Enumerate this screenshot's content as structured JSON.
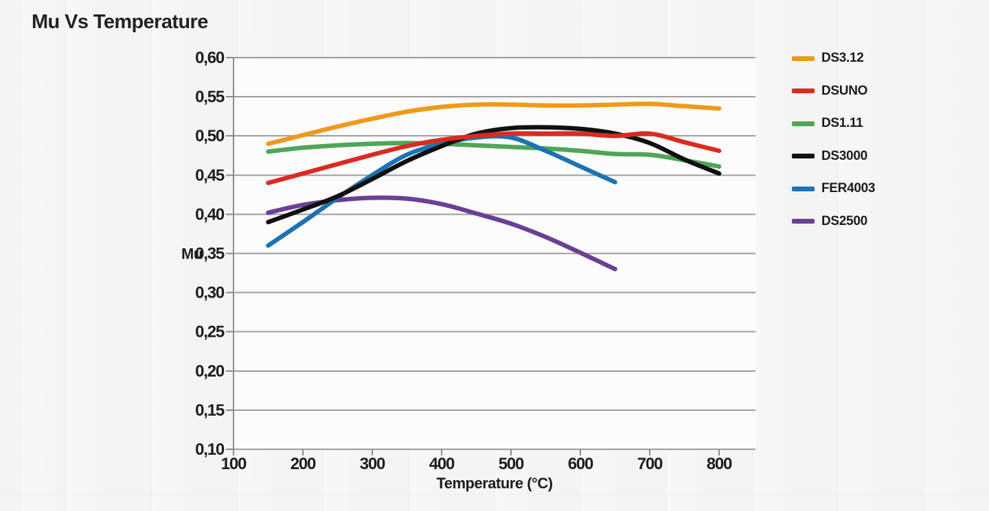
{
  "title": "Mu Vs Temperature",
  "chart_data": {
    "type": "line",
    "title": "Mu Vs Temperature",
    "xlabel": "Temperature (°C)",
    "ylabel": "Mu",
    "xlim": [
      100,
      852
    ],
    "ylim": [
      0.1,
      0.6
    ],
    "x_ticks": [
      100,
      200,
      300,
      400,
      500,
      600,
      700,
      800
    ],
    "y_ticks": [
      0.6,
      0.55,
      0.5,
      0.45,
      0.4,
      0.35,
      0.3,
      0.25,
      0.2,
      0.15,
      0.1
    ],
    "y_tick_labels": [
      "0,60",
      "0,55",
      "0,50",
      "0,45",
      "0,40",
      "0,35",
      "0,30",
      "0,25",
      "0,20",
      "0,15",
      "0,10"
    ],
    "decimal_separator": ",",
    "grid": "horizontal",
    "legend_position": "right",
    "series": [
      {
        "name": "DS3.12",
        "color": "#F0991A",
        "x": [
          150,
          200,
          250,
          300,
          350,
          400,
          450,
          500,
          550,
          600,
          650,
          700,
          750,
          800
        ],
        "y": [
          0.49,
          0.501,
          0.512,
          0.522,
          0.531,
          0.537,
          0.54,
          0.54,
          0.539,
          0.539,
          0.54,
          0.541,
          0.538,
          0.535
        ]
      },
      {
        "name": "DSUNO",
        "color": "#DA2B20",
        "x": [
          150,
          200,
          250,
          300,
          350,
          400,
          450,
          500,
          550,
          600,
          650,
          700,
          750,
          800
        ],
        "y": [
          0.44,
          0.452,
          0.464,
          0.476,
          0.487,
          0.495,
          0.5,
          0.503,
          0.503,
          0.503,
          0.5,
          0.503,
          0.492,
          0.481
        ]
      },
      {
        "name": "DS1.11",
        "color": "#4EA656",
        "x": [
          150,
          200,
          250,
          300,
          350,
          400,
          450,
          500,
          550,
          600,
          650,
          700,
          750,
          800
        ],
        "y": [
          0.48,
          0.485,
          0.488,
          0.49,
          0.491,
          0.49,
          0.488,
          0.486,
          0.484,
          0.481,
          0.477,
          0.476,
          0.469,
          0.461
        ]
      },
      {
        "name": "DS3000",
        "color": "#101010",
        "x": [
          150,
          200,
          250,
          300,
          350,
          400,
          450,
          500,
          550,
          600,
          650,
          700,
          750,
          800
        ],
        "y": [
          0.39,
          0.406,
          0.423,
          0.445,
          0.468,
          0.487,
          0.503,
          0.51,
          0.511,
          0.509,
          0.503,
          0.491,
          0.47,
          0.452
        ]
      },
      {
        "name": "FER4003",
        "color": "#1C73B4",
        "x": [
          150,
          200,
          250,
          300,
          350,
          400,
          450,
          500,
          550,
          600,
          650
        ],
        "y": [
          0.36,
          0.39,
          0.421,
          0.45,
          0.476,
          0.49,
          0.498,
          0.498,
          0.481,
          0.461,
          0.441
        ]
      },
      {
        "name": "DS2500",
        "color": "#6A4094",
        "x": [
          150,
          200,
          250,
          300,
          350,
          400,
          450,
          500,
          550,
          600,
          650
        ],
        "y": [
          0.402,
          0.412,
          0.418,
          0.421,
          0.42,
          0.413,
          0.401,
          0.388,
          0.371,
          0.351,
          0.33
        ]
      }
    ]
  }
}
